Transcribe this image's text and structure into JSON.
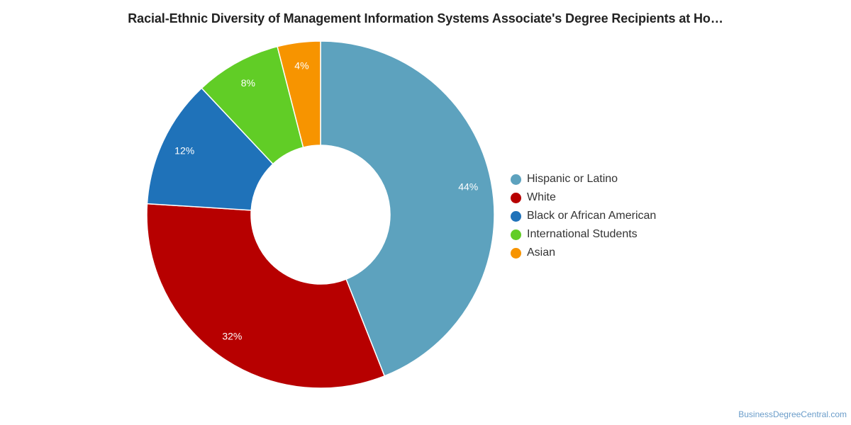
{
  "chart_data": {
    "type": "pie",
    "title": "Racial-Ethnic Diversity of Management Information Systems Associate's Degree Recipients at Ho…",
    "categories": [
      "Hispanic or Latino",
      "White",
      "Black or African American",
      "International Students",
      "Asian"
    ],
    "values": [
      44,
      32,
      12,
      8,
      4
    ],
    "value_labels": [
      "44%",
      "32%",
      "12%",
      "8%",
      "4%"
    ],
    "colors": [
      "#5da2be",
      "#b70000",
      "#1f72b9",
      "#61cd26",
      "#f79400"
    ],
    "donut": true,
    "legend_position": "right"
  },
  "credit": "BusinessDegreeCentral.com"
}
